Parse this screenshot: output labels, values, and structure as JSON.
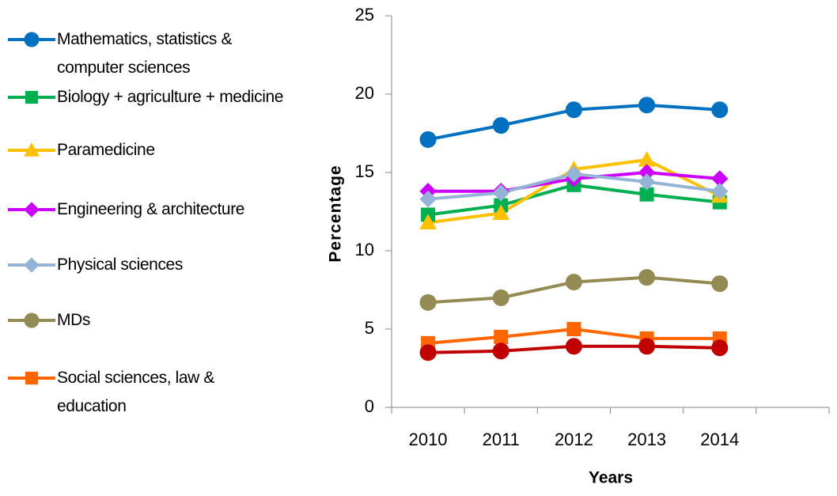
{
  "chart_data": {
    "type": "line",
    "x_label": "Years",
    "y_label": "Percentage",
    "categories": [
      "2010",
      "2011",
      "2012",
      "2013",
      "2014",
      null
    ],
    "ylim": [
      0,
      25
    ],
    "yticks": [
      0,
      5,
      10,
      15,
      20,
      25
    ],
    "legend": "left",
    "series": [
      {
        "name": "Mathematics, statistics & computer sciences",
        "color": "#0070c0",
        "marker": "circle",
        "values": [
          17.1,
          18.0,
          19.0,
          19.3,
          19.0,
          null
        ]
      },
      {
        "name": "Biology + agriculture + medicine",
        "color": "#00b050",
        "marker": "square",
        "values": [
          12.3,
          12.9,
          14.2,
          13.6,
          13.1,
          null
        ]
      },
      {
        "name": "Paramedicine",
        "color": "#ffc000",
        "marker": "triangle",
        "values": [
          11.8,
          12.4,
          15.2,
          15.8,
          13.5,
          null
        ]
      },
      {
        "name": "Engineering & architecture",
        "color": "#cc00ff",
        "marker": "diamond",
        "values": [
          13.8,
          13.8,
          14.6,
          15.0,
          14.6,
          null
        ]
      },
      {
        "name": "Physical sciences",
        "color": "#95b3d7",
        "marker": "diamond",
        "values": [
          13.3,
          13.7,
          14.9,
          14.4,
          13.8,
          null
        ]
      },
      {
        "name": "MDs",
        "color": "#948a54",
        "marker": "circle",
        "values": [
          6.7,
          7.0,
          8.0,
          8.3,
          7.9,
          null
        ]
      },
      {
        "name": "Social sciences, law & education",
        "color": "#ff6600",
        "marker": "square",
        "values": [
          4.1,
          4.5,
          5.0,
          4.4,
          4.4,
          null
        ]
      },
      {
        "color": "#c00000",
        "marker": "circle",
        "values": [
          3.5,
          3.6,
          3.9,
          3.9,
          3.8,
          null
        ]
      }
    ]
  }
}
